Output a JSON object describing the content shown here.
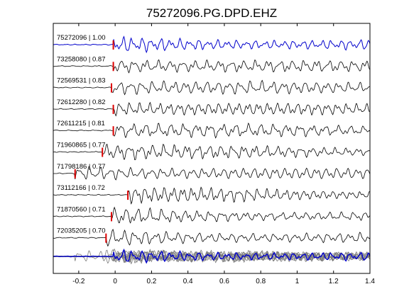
{
  "chart_data": {
    "type": "line",
    "title": "75272096.PG.DPD.EHZ",
    "xlabel": "",
    "ylabel": "",
    "xlim": [
      -0.34,
      1.4
    ],
    "xticks": [
      -0.2,
      0,
      0.2,
      0.4,
      0.6,
      0.8,
      1,
      1.2,
      1.4
    ],
    "xtick_labels": [
      "-0.2",
      "0",
      "0.2",
      "0.4",
      "0.6",
      "0.8",
      "1",
      "1.2",
      "1.4"
    ],
    "grid": false,
    "colors": {
      "reference": "#0000cc",
      "trace": "#000000",
      "pick": "#dd0000",
      "stack": "#7a7a7a"
    },
    "traces": [
      {
        "label": "75272096 | 1.00",
        "pick": -0.01,
        "reference": true
      },
      {
        "label": "73258080 | 0.87",
        "pick": -0.01
      },
      {
        "label": "72569531 | 0.83",
        "pick": -0.02
      },
      {
        "label": "72612280 | 0.82",
        "pick": -0.01
      },
      {
        "label": "72611215 | 0.81",
        "pick": -0.01
      },
      {
        "label": "71960865 | 0.77",
        "pick": -0.07
      },
      {
        "label": "71798186 | 0.77",
        "pick": -0.22
      },
      {
        "label": "73112166 | 0.72",
        "pick": 0.07
      },
      {
        "label": "71870560 | 0.71",
        "pick": -0.02
      },
      {
        "label": "72035205 | 0.70",
        "pick": -0.05
      }
    ]
  }
}
